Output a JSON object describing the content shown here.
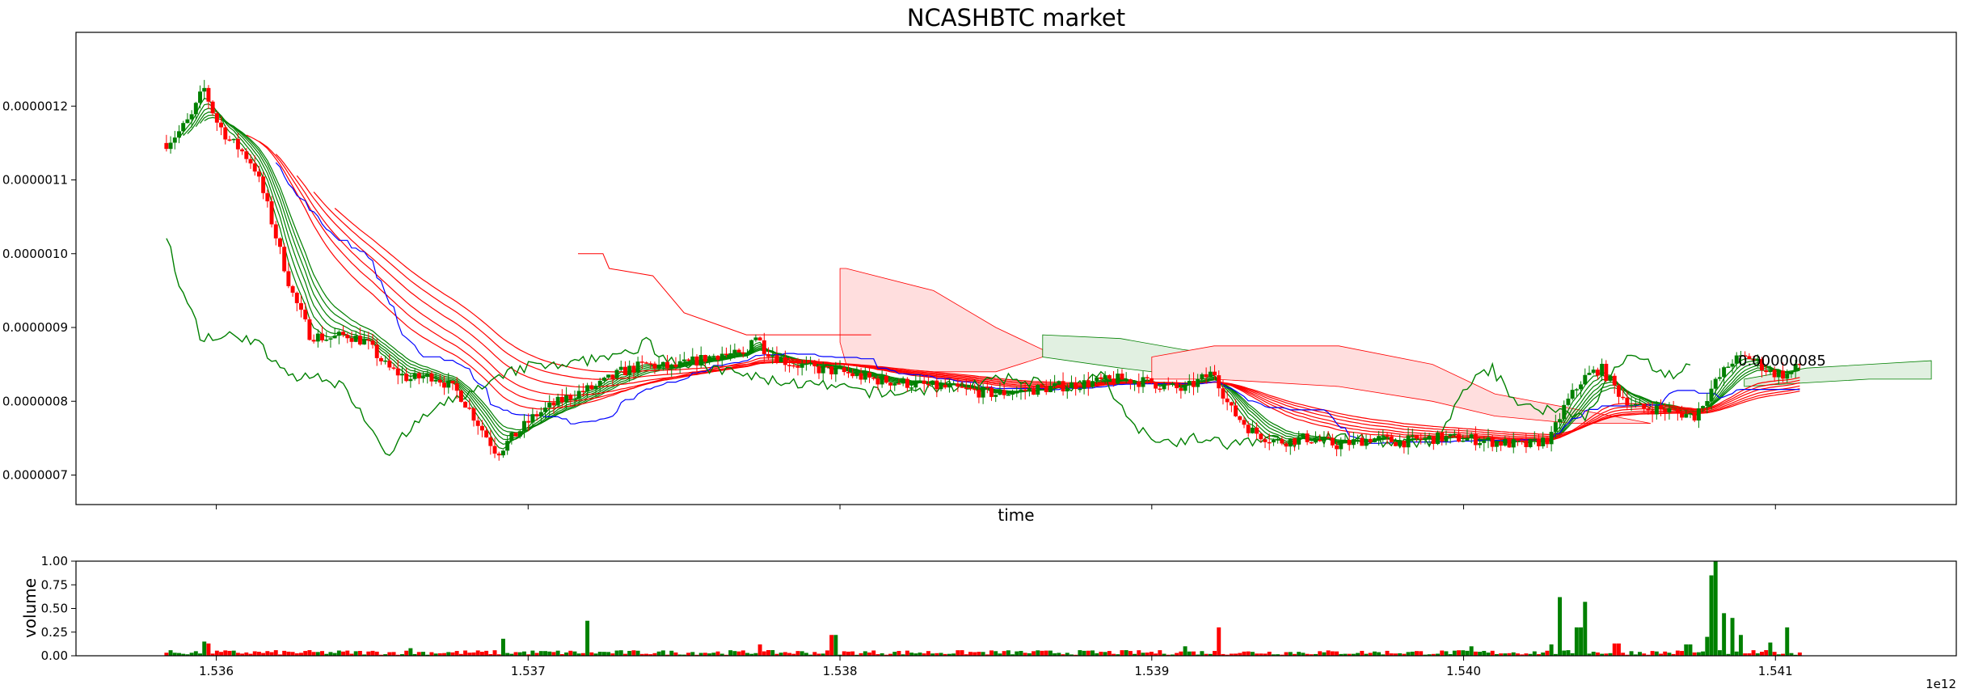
{
  "chart_data": [
    {
      "type": "candlestick",
      "title": "NCASHBTC market",
      "xlabel": "time",
      "ylabel": "",
      "xlim": [
        1.53555,
        1.54158
      ],
      "ylim": [
        6.6e-07,
        1.3e-06
      ],
      "x_ticks": [
        1.536,
        1.537,
        1.538,
        1.539,
        1.54,
        1.541
      ],
      "y_ticks": [
        7e-07,
        8e-07,
        9e-07,
        1e-06,
        1.1e-06,
        1.2e-06
      ],
      "y_tick_labels": [
        "0.0000007",
        "0.0000008",
        "0.0000009",
        "0.0000010",
        "0.0000011",
        "0.0000012"
      ],
      "last_price_label": "0.00000085",
      "colors": {
        "up": "#008000",
        "down": "#ff0000",
        "baseline": "#0000ff",
        "cloud_bull": "#e1f0e1",
        "cloud_bear": "#ffdede"
      },
      "ohlc_anchor": [
        [
          1.53584,
          1.15e-06
        ],
        [
          1.53588,
          1.165e-06
        ],
        [
          1.53592,
          1.185e-06
        ],
        [
          1.53596,
          1.225e-06
        ],
        [
          1.536,
          1.18e-06
        ],
        [
          1.53604,
          1.155e-06
        ],
        [
          1.53608,
          1.14e-06
        ],
        [
          1.53612,
          1.12e-06
        ],
        [
          1.53616,
          1.07e-06
        ],
        [
          1.5362,
          1.01e-06
        ],
        [
          1.53624,
          9.5e-07
        ],
        [
          1.5363,
          8.9e-07
        ],
        [
          1.53636,
          8.85e-07
        ],
        [
          1.53642,
          8.9e-07
        ],
        [
          1.53648,
          8.8e-07
        ],
        [
          1.53655,
          8.45e-07
        ],
        [
          1.53662,
          8.3e-07
        ],
        [
          1.5367,
          8.35e-07
        ],
        [
          1.53678,
          8.1e-07
        ],
        [
          1.53684,
          7.7e-07
        ],
        [
          1.5369,
          7.3e-07
        ],
        [
          1.53696,
          7.55e-07
        ],
        [
          1.53702,
          7.8e-07
        ],
        [
          1.53708,
          7.95e-07
        ],
        [
          1.53715,
          8.1e-07
        ],
        [
          1.53722,
          8.2e-07
        ],
        [
          1.5373,
          8.4e-07
        ],
        [
          1.53738,
          8.5e-07
        ],
        [
          1.53746,
          8.45e-07
        ],
        [
          1.53754,
          8.55e-07
        ],
        [
          1.53762,
          8.65e-07
        ],
        [
          1.5377,
          8.6e-07
        ],
        [
          1.53772,
          8.95e-07
        ],
        [
          1.53776,
          8.7e-07
        ],
        [
          1.53782,
          8.55e-07
        ],
        [
          1.5379,
          8.45e-07
        ],
        [
          1.538,
          8.4e-07
        ],
        [
          1.5381,
          8.3e-07
        ],
        [
          1.5382,
          8.25e-07
        ],
        [
          1.5383,
          8.2e-07
        ],
        [
          1.5384,
          8.15e-07
        ],
        [
          1.5385,
          8.1e-07
        ],
        [
          1.5386,
          8.15e-07
        ],
        [
          1.5387,
          8.2e-07
        ],
        [
          1.5388,
          8.25e-07
        ],
        [
          1.5389,
          8.3e-07
        ],
        [
          1.539,
          8.25e-07
        ],
        [
          1.5391,
          8.15e-07
        ],
        [
          1.5392,
          8.4e-07
        ],
        [
          1.53925,
          7.9e-07
        ],
        [
          1.53932,
          7.6e-07
        ],
        [
          1.5394,
          7.45e-07
        ],
        [
          1.5395,
          7.5e-07
        ],
        [
          1.5396,
          7.4e-07
        ],
        [
          1.5397,
          7.5e-07
        ],
        [
          1.5398,
          7.45e-07
        ],
        [
          1.5399,
          7.5e-07
        ],
        [
          1.54,
          7.5e-07
        ],
        [
          1.5401,
          7.45e-07
        ],
        [
          1.5402,
          7.4e-07
        ],
        [
          1.54028,
          7.5e-07
        ],
        [
          1.54032,
          7.9e-07
        ],
        [
          1.54038,
          8.3e-07
        ],
        [
          1.54044,
          8.45e-07
        ],
        [
          1.5405,
          8.1e-07
        ],
        [
          1.54056,
          7.9e-07
        ],
        [
          1.54062,
          7.9e-07
        ],
        [
          1.54068,
          7.85e-07
        ],
        [
          1.54074,
          7.8e-07
        ],
        [
          1.5408,
          8.2e-07
        ],
        [
          1.54086,
          8.55e-07
        ],
        [
          1.54092,
          8.6e-07
        ],
        [
          1.54098,
          8.4e-07
        ],
        [
          1.54104,
          8.35e-07
        ],
        [
          1.54108,
          8.5e-07
        ]
      ]
    },
    {
      "type": "bar",
      "ylabel": "volume",
      "xlim": [
        1.53555,
        1.54158
      ],
      "ylim": [
        0,
        1.0
      ],
      "x_ticks": [
        1.536,
        1.537,
        1.538,
        1.539,
        1.54,
        1.541
      ],
      "x_tick_labels": [
        "1.536",
        "1.537",
        "1.538",
        "1.539",
        "1.540",
        "1.541"
      ],
      "y_ticks": [
        0,
        0.25,
        0.5,
        0.75,
        1.0
      ],
      "y_tick_labels": [
        "0.00",
        "0.25",
        "0.50",
        "0.75",
        "1.00"
      ],
      "x_offset_label": "1e12",
      "spikes": [
        [
          1.53596,
          0.15
        ],
        [
          1.53598,
          0.13
        ],
        [
          1.53662,
          0.08
        ],
        [
          1.53692,
          0.18
        ],
        [
          1.53719,
          0.37
        ],
        [
          1.53774,
          0.12
        ],
        [
          1.53798,
          0.22
        ],
        [
          1.53911,
          0.1
        ],
        [
          1.53922,
          0.3
        ],
        [
          1.54003,
          0.1
        ],
        [
          1.54028,
          0.12
        ],
        [
          1.54031,
          0.62
        ],
        [
          1.54039,
          0.57
        ],
        [
          1.54037,
          0.3
        ],
        [
          1.54049,
          0.13
        ],
        [
          1.54072,
          0.12
        ],
        [
          1.54078,
          0.2
        ],
        [
          1.5408,
          0.85
        ],
        [
          1.54081,
          1.0
        ],
        [
          1.54083,
          0.45
        ],
        [
          1.54086,
          0.4
        ],
        [
          1.54089,
          0.22
        ],
        [
          1.54098,
          0.14
        ],
        [
          1.54104,
          0.3
        ]
      ]
    }
  ]
}
